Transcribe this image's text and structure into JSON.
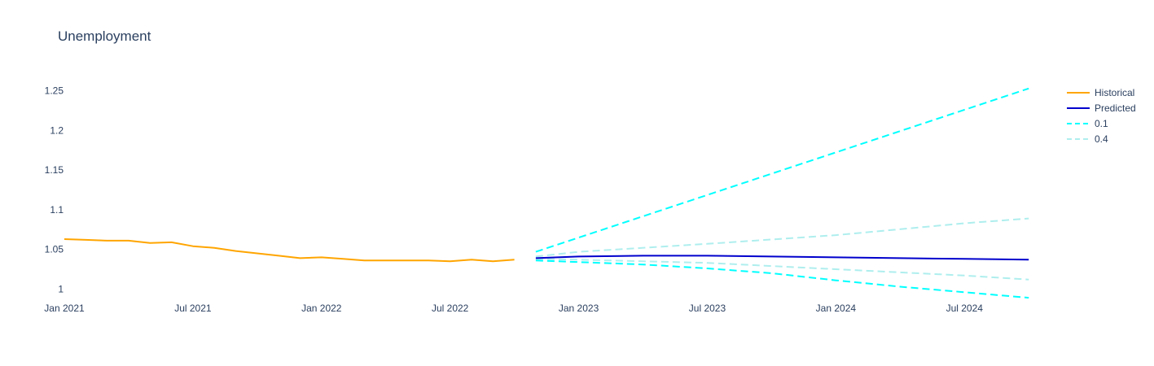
{
  "chart_data": {
    "type": "line",
    "title": "Unemployment",
    "xlabel": "",
    "ylabel": "",
    "ylim": [
      0.985,
      1.262
    ],
    "y_ticks": [
      1,
      1.05,
      1.1,
      1.15,
      1.2,
      1.25
    ],
    "y_tick_labels": [
      "1",
      "1.05",
      "1.1",
      "1.15",
      "1.2",
      "1.25"
    ],
    "x_ticks": [
      "2021-01",
      "2021-07",
      "2022-01",
      "2022-07",
      "2023-01",
      "2023-07",
      "2024-01",
      "2024-07"
    ],
    "x_tick_labels": [
      "Jan 2021",
      "Jul 2021",
      "Jan 2022",
      "Jul 2022",
      "Jan 2023",
      "Jul 2023",
      "Jan 2024",
      "Jul 2024"
    ],
    "grid": false,
    "legend_position": "top-right",
    "series": [
      {
        "name": "Historical",
        "color": "#FFA500",
        "dash": "solid",
        "x": [
          "2021-01",
          "2021-02",
          "2021-03",
          "2021-04",
          "2021-05",
          "2021-06",
          "2021-07",
          "2021-08",
          "2021-09",
          "2021-10",
          "2021-11",
          "2021-12",
          "2022-01",
          "2022-02",
          "2022-03",
          "2022-04",
          "2022-05",
          "2022-06",
          "2022-07",
          "2022-08",
          "2022-09",
          "2022-10"
        ],
        "values": [
          1.063,
          1.062,
          1.061,
          1.061,
          1.058,
          1.059,
          1.054,
          1.052,
          1.048,
          1.045,
          1.042,
          1.039,
          1.04,
          1.038,
          1.036,
          1.036,
          1.036,
          1.036,
          1.035,
          1.037,
          1.035,
          1.037
        ]
      },
      {
        "name": "Predicted",
        "color": "#0000CD",
        "dash": "solid",
        "x": [
          "2022-11",
          "2023-01",
          "2023-04",
          "2023-07",
          "2023-10",
          "2024-01",
          "2024-04",
          "2024-07",
          "2024-10"
        ],
        "values": [
          1.039,
          1.041,
          1.042,
          1.042,
          1.041,
          1.04,
          1.039,
          1.038,
          1.037
        ]
      },
      {
        "name": "0.1",
        "color": "#00FFFF",
        "dash": "dash",
        "upper": {
          "x": [
            "2022-11",
            "2024-10"
          ],
          "values": [
            1.047,
            1.253
          ]
        },
        "lower": {
          "x": [
            "2022-11",
            "2023-01",
            "2023-04",
            "2023-07",
            "2023-10",
            "2024-01",
            "2024-04",
            "2024-07",
            "2024-10"
          ],
          "values": [
            1.036,
            1.034,
            1.031,
            1.026,
            1.02,
            1.011,
            1.003,
            0.996,
            0.989
          ]
        }
      },
      {
        "name": "0.4",
        "color": "#AFEEEE",
        "dash": "dash",
        "upper": {
          "x": [
            "2022-11",
            "2023-01",
            "2023-07",
            "2024-01",
            "2024-07",
            "2024-10"
          ],
          "values": [
            1.041,
            1.047,
            1.057,
            1.068,
            1.083,
            1.089
          ]
        },
        "lower": {
          "x": [
            "2022-11",
            "2023-01",
            "2023-07",
            "2024-01",
            "2024-07",
            "2024-10"
          ],
          "values": [
            1.038,
            1.037,
            1.033,
            1.025,
            1.017,
            1.012
          ]
        }
      }
    ]
  }
}
